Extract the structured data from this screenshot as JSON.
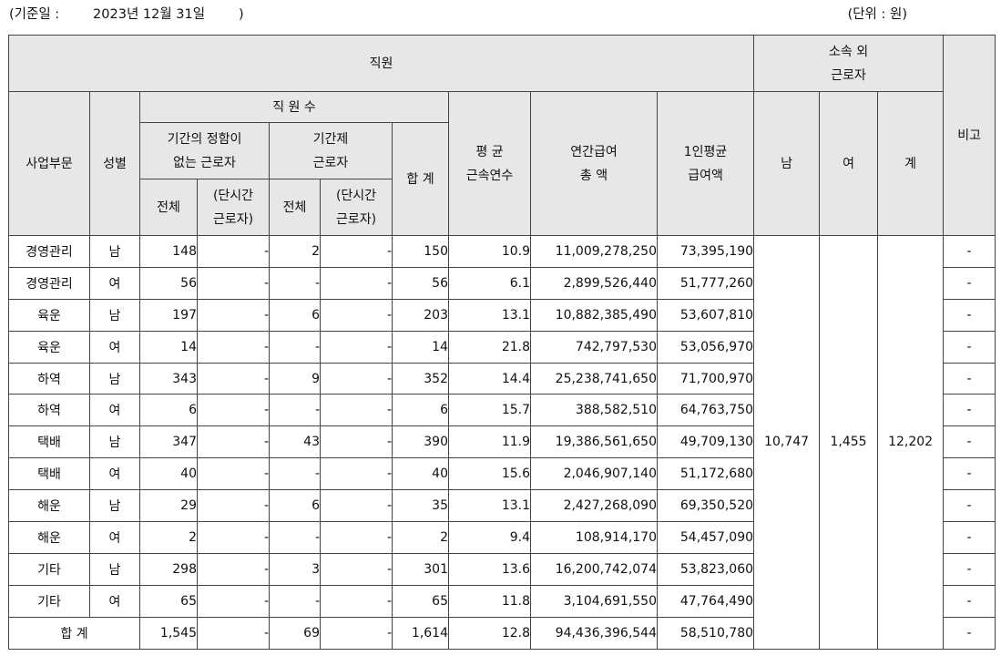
{
  "caption": {
    "left": "(기준일 :        2023년 12월 31일        )",
    "right": "(단위 : 원)"
  },
  "header": {
    "staff": "직원",
    "outside": [
      "소속 외",
      "근로자"
    ],
    "remarks": "비고",
    "division": "사업부문",
    "gender": "성별",
    "employee_count": "직 원 수",
    "permanent": [
      "기간의 정함이",
      "없는 근로자"
    ],
    "fixed_term": [
      "기간제",
      "근로자"
    ],
    "total": "합 계",
    "avg_tenure": [
      "평 균",
      "근속연수"
    ],
    "annual_pay": [
      "연간급여",
      "총 액"
    ],
    "avg_pay": [
      "1인평균",
      "급여액"
    ],
    "male": "남",
    "female": "여",
    "sum": "계",
    "all": "전체",
    "part_time": [
      "(단시간",
      "근로자)"
    ]
  },
  "rows": [
    {
      "division": "경영관리",
      "gender": "남",
      "perm_total": "148",
      "perm_part": "-",
      "fixed_total": "2",
      "fixed_part": "-",
      "total": "150",
      "tenure": "10.9",
      "annual": "11,009,278,250",
      "avg": "73,395,190",
      "remarks": "-"
    },
    {
      "division": "경영관리",
      "gender": "여",
      "perm_total": "56",
      "perm_part": "-",
      "fixed_total": "-",
      "fixed_part": "-",
      "total": "56",
      "tenure": "6.1",
      "annual": "2,899,526,440",
      "avg": "51,777,260",
      "remarks": "-"
    },
    {
      "division": "육운",
      "gender": "남",
      "perm_total": "197",
      "perm_part": "-",
      "fixed_total": "6",
      "fixed_part": "-",
      "total": "203",
      "tenure": "13.1",
      "annual": "10,882,385,490",
      "avg": "53,607,810",
      "remarks": "-"
    },
    {
      "division": "육운",
      "gender": "여",
      "perm_total": "14",
      "perm_part": "-",
      "fixed_total": "-",
      "fixed_part": "-",
      "total": "14",
      "tenure": "21.8",
      "annual": "742,797,530",
      "avg": "53,056,970",
      "remarks": "-"
    },
    {
      "division": "하역",
      "gender": "남",
      "perm_total": "343",
      "perm_part": "-",
      "fixed_total": "9",
      "fixed_part": "-",
      "total": "352",
      "tenure": "14.4",
      "annual": "25,238,741,650",
      "avg": "71,700,970",
      "remarks": "-"
    },
    {
      "division": "하역",
      "gender": "여",
      "perm_total": "6",
      "perm_part": "-",
      "fixed_total": "-",
      "fixed_part": "-",
      "total": "6",
      "tenure": "15.7",
      "annual": "388,582,510",
      "avg": "64,763,750",
      "remarks": "-"
    },
    {
      "division": "택배",
      "gender": "남",
      "perm_total": "347",
      "perm_part": "-",
      "fixed_total": "43",
      "fixed_part": "-",
      "total": "390",
      "tenure": "11.9",
      "annual": "19,386,561,650",
      "avg": "49,709,130",
      "remarks": "-"
    },
    {
      "division": "택배",
      "gender": "여",
      "perm_total": "40",
      "perm_part": "-",
      "fixed_total": "-",
      "fixed_part": "-",
      "total": "40",
      "tenure": "15.6",
      "annual": "2,046,907,140",
      "avg": "51,172,680",
      "remarks": "-"
    },
    {
      "division": "해운",
      "gender": "남",
      "perm_total": "29",
      "perm_part": "-",
      "fixed_total": "6",
      "fixed_part": "-",
      "total": "35",
      "tenure": "13.1",
      "annual": "2,427,268,090",
      "avg": "69,350,520",
      "remarks": "-"
    },
    {
      "division": "해운",
      "gender": "여",
      "perm_total": "2",
      "perm_part": "-",
      "fixed_total": "-",
      "fixed_part": "-",
      "total": "2",
      "tenure": "9.4",
      "annual": "108,914,170",
      "avg": "54,457,090",
      "remarks": "-"
    },
    {
      "division": "기타",
      "gender": "남",
      "perm_total": "298",
      "perm_part": "-",
      "fixed_total": "3",
      "fixed_part": "-",
      "total": "301",
      "tenure": "13.6",
      "annual": "16,200,742,074",
      "avg": "53,823,060",
      "remarks": "-"
    },
    {
      "division": "기타",
      "gender": "여",
      "perm_total": "65",
      "perm_part": "-",
      "fixed_total": "-",
      "fixed_part": "-",
      "total": "65",
      "tenure": "11.8",
      "annual": "3,104,691,550",
      "avg": "47,764,490",
      "remarks": "-"
    }
  ],
  "outside_workers": {
    "male": "10,747",
    "female": "1,455",
    "total": "12,202"
  },
  "totals": {
    "label": "합 계",
    "perm_total": "1,545",
    "perm_part": "-",
    "fixed_total": "69",
    "fixed_part": "-",
    "total": "1,614",
    "tenure": "12.8",
    "annual": "94,436,396,544",
    "avg": "58,510,780",
    "remarks": "-"
  }
}
